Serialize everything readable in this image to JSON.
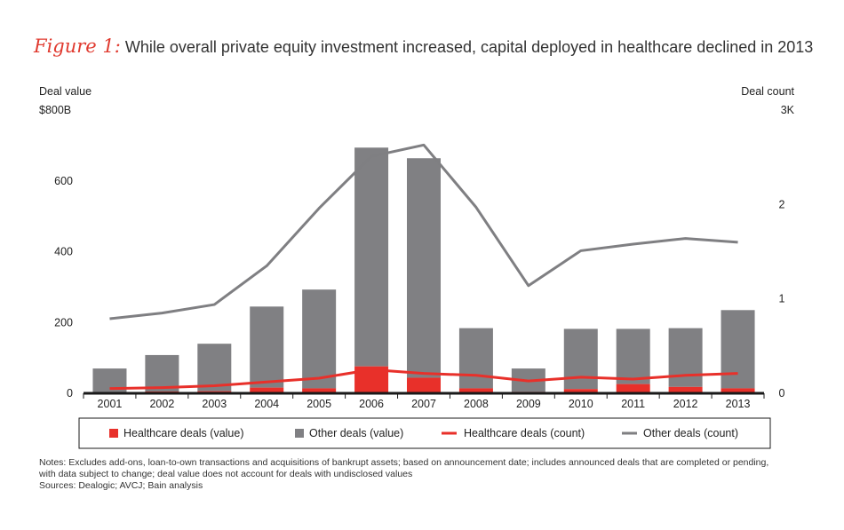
{
  "title": {
    "prefix": "Figure 1:",
    "text": "While overall private equity investment increased, capital deployed in healthcare declined in 2013"
  },
  "left_axis": {
    "title": "Deal value",
    "top_label": "$800B"
  },
  "right_axis": {
    "title": "Deal count",
    "top_label": "3K"
  },
  "colors": {
    "healthcare": "#e8302a",
    "other_bar": "#808083",
    "other_line": "#7f7f82",
    "axis": "#1a1a1a"
  },
  "legend": {
    "healthcare_value": "Healthcare deals (value)",
    "other_value": "Other deals (value)",
    "healthcare_count": "Healthcare deals (count)",
    "other_count": "Other deals (count)"
  },
  "notes": {
    "line1": "Notes: Excludes add-ons, loan-to-own transactions and acquisitions of bankrupt assets; based on announcement date; includes announced deals that are completed or pending,",
    "line2": "with data subject to change; deal value does not account for deals with undisclosed values",
    "line3": "Sources: Dealogic; AVCJ; Bain analysis"
  },
  "chart_data": {
    "type": "bar",
    "title": "While overall private equity investment increased, capital deployed in healthcare declined in 2013",
    "categories": [
      "2001",
      "2002",
      "2003",
      "2004",
      "2005",
      "2006",
      "2007",
      "2008",
      "2009",
      "2010",
      "2011",
      "2012",
      "2013"
    ],
    "y_left": {
      "label": "Deal value",
      "unit": "$B",
      "ylim": [
        0,
        800
      ],
      "ticks": [
        0,
        200,
        400,
        600
      ],
      "top_tick_label": "$800B"
    },
    "y_right": {
      "label": "Deal count",
      "unit": "K",
      "ylim": [
        0,
        3
      ],
      "ticks": [
        0,
        1,
        2
      ],
      "top_tick_label": "3K"
    },
    "stacked": true,
    "series": [
      {
        "name": "Healthcare deals (value)",
        "kind": "bar",
        "axis": "left",
        "values": [
          3,
          5,
          6,
          16,
          14,
          76,
          44,
          14,
          4,
          12,
          26,
          18,
          14
        ]
      },
      {
        "name": "Other deals (value)",
        "kind": "bar",
        "axis": "left",
        "values": [
          67,
          103,
          134,
          229,
          279,
          618,
          620,
          170,
          66,
          170,
          156,
          166,
          221
        ]
      },
      {
        "name": "Healthcare deals (count)",
        "kind": "line",
        "axis": "right",
        "values": [
          0.05,
          0.06,
          0.08,
          0.12,
          0.16,
          0.25,
          0.21,
          0.19,
          0.13,
          0.17,
          0.15,
          0.19,
          0.21
        ]
      },
      {
        "name": "Other deals (count)",
        "kind": "line",
        "axis": "right",
        "values": [
          0.79,
          0.85,
          0.94,
          1.35,
          1.96,
          2.51,
          2.63,
          1.97,
          1.14,
          1.51,
          1.58,
          1.64,
          1.6
        ]
      }
    ]
  }
}
